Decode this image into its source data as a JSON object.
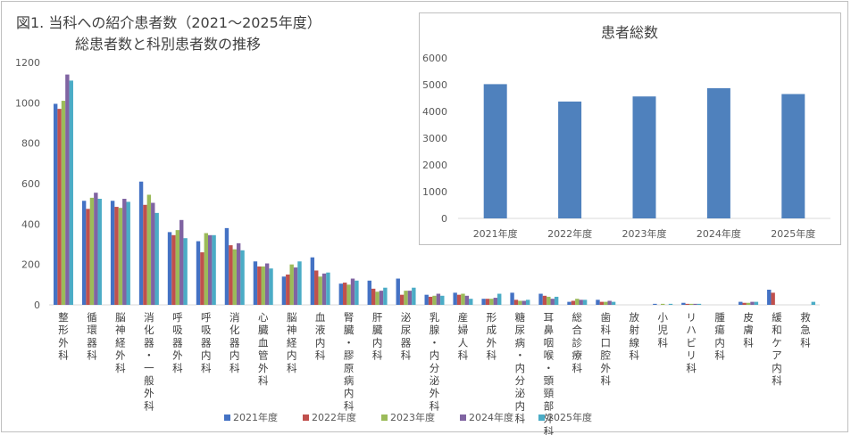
{
  "figure": {
    "title_line1": "図1. 当科への紹介患者数（2021～2025年度）",
    "title_line2": "総患者数と科別患者数の推移"
  },
  "chart_data": [
    {
      "type": "bar",
      "title": "図1. 当科への紹介患者数（2021～2025年度） 総患者数と科別患者数の推移",
      "ylim": [
        0,
        1200
      ],
      "yticks": [
        0,
        200,
        400,
        600,
        800,
        1000,
        1200
      ],
      "grid": false,
      "legend_position": "bottom",
      "categories": [
        "整形外科",
        "循環器科",
        "脳神経外科",
        "消化器・一般外科",
        "呼吸器外科",
        "呼吸器内科",
        "消化器内科",
        "心臓血管外科",
        "脳神経内科",
        "血液内科",
        "腎臓・膠原病内科",
        "肝臓内科",
        "泌尿器科",
        "乳腺・内分泌外科",
        "産婦人科",
        "形成外科",
        "糖尿病・内分泌内科",
        "耳鼻咽喉・頭頸部外科",
        "総合診療科",
        "歯科口腔外科",
        "放射線科",
        "小児科",
        "リハビリ科",
        "腫瘍内科",
        "皮膚科",
        "緩和ケア内科",
        "救急科"
      ],
      "series": [
        {
          "name": "2021年度",
          "color": "#4472c4",
          "values": [
            995,
            515,
            515,
            610,
            360,
            315,
            380,
            215,
            140,
            235,
            105,
            120,
            130,
            50,
            60,
            30,
            60,
            55,
            15,
            25,
            0,
            5,
            10,
            0,
            15,
            75,
            0
          ]
        },
        {
          "name": "2022年度",
          "color": "#c0504d",
          "values": [
            970,
            475,
            485,
            495,
            345,
            260,
            295,
            190,
            150,
            170,
            110,
            80,
            50,
            40,
            50,
            30,
            25,
            45,
            20,
            15,
            0,
            0,
            5,
            0,
            10,
            60,
            0
          ]
        },
        {
          "name": "2023年度",
          "color": "#9bbb59",
          "values": [
            1010,
            530,
            480,
            545,
            370,
            355,
            275,
            190,
            200,
            140,
            100,
            65,
            70,
            45,
            55,
            30,
            20,
            40,
            30,
            15,
            0,
            5,
            5,
            0,
            10,
            0,
            0
          ]
        },
        {
          "name": "2024年度",
          "color": "#8064a2",
          "values": [
            1140,
            555,
            525,
            505,
            420,
            345,
            305,
            205,
            185,
            155,
            130,
            70,
            70,
            55,
            45,
            35,
            20,
            30,
            25,
            20,
            0,
            0,
            5,
            0,
            15,
            0,
            0
          ]
        },
        {
          "name": "2025年度",
          "color": "#4bacc6",
          "values": [
            1110,
            525,
            510,
            455,
            330,
            345,
            270,
            180,
            215,
            160,
            120,
            85,
            85,
            45,
            30,
            55,
            25,
            40,
            25,
            15,
            0,
            5,
            5,
            0,
            15,
            0,
            15
          ]
        }
      ]
    },
    {
      "type": "bar",
      "title": "患者総数",
      "ylim": [
        0,
        6000
      ],
      "yticks": [
        0,
        1000,
        2000,
        3000,
        4000,
        5000,
        6000
      ],
      "grid": false,
      "color": "#4f81bd",
      "categories": [
        "2021年度",
        "2022年度",
        "2023年度",
        "2024年度",
        "2025年度"
      ],
      "values": [
        5020,
        4370,
        4560,
        4870,
        4650
      ]
    }
  ]
}
